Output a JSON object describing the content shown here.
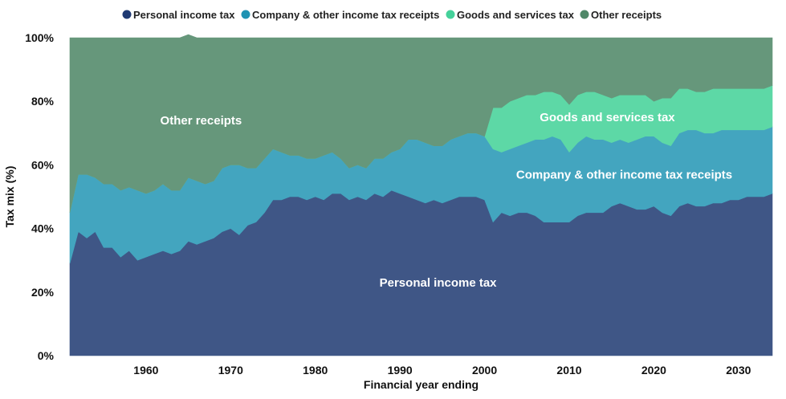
{
  "chart_data": {
    "type": "area",
    "stacked": true,
    "xlabel": "Financial year ending",
    "ylabel": "Tax mix (%)",
    "xlim": [
      1951,
      2034
    ],
    "ylim": [
      0,
      100
    ],
    "x_ticks": [
      1960,
      1970,
      1980,
      1990,
      2000,
      2010,
      2020,
      2030
    ],
    "y_ticks": [
      0,
      20,
      40,
      60,
      80,
      100
    ],
    "y_tick_labels": [
      "0%",
      "20%",
      "40%",
      "60%",
      "80%",
      "100%"
    ],
    "legend_position": "top-center",
    "x": [
      1951,
      1952,
      1953,
      1954,
      1955,
      1956,
      1957,
      1958,
      1959,
      1960,
      1961,
      1962,
      1963,
      1964,
      1965,
      1966,
      1967,
      1968,
      1969,
      1970,
      1971,
      1972,
      1973,
      1974,
      1975,
      1976,
      1977,
      1978,
      1979,
      1980,
      1981,
      1982,
      1983,
      1984,
      1985,
      1986,
      1987,
      1988,
      1989,
      1990,
      1991,
      1992,
      1993,
      1994,
      1995,
      1996,
      1997,
      1998,
      1999,
      2000,
      2001,
      2002,
      2003,
      2004,
      2005,
      2006,
      2007,
      2008,
      2009,
      2010,
      2011,
      2012,
      2013,
      2014,
      2015,
      2016,
      2017,
      2018,
      2019,
      2020,
      2021,
      2022,
      2023,
      2024,
      2025,
      2026,
      2027,
      2028,
      2029,
      2030,
      2031,
      2032,
      2033,
      2034
    ],
    "series": [
      {
        "name": "Personal income tax",
        "color": "#3f5686",
        "legend_color": "#1f3a73",
        "values": [
          29,
          39,
          37,
          39,
          34,
          34,
          31,
          33,
          30,
          31,
          32,
          33,
          32,
          33,
          36,
          35,
          36,
          37,
          39,
          40,
          38,
          41,
          42,
          45,
          49,
          49,
          50,
          50,
          49,
          50,
          49,
          51,
          51,
          49,
          50,
          49,
          51,
          50,
          52,
          51,
          50,
          49,
          48,
          49,
          48,
          49,
          50,
          50,
          50,
          49,
          42,
          45,
          44,
          45,
          45,
          44,
          42,
          42,
          42,
          42,
          44,
          45,
          45,
          45,
          47,
          48,
          47,
          46,
          46,
          47,
          45,
          44,
          47,
          48,
          47,
          47,
          48,
          48,
          49,
          49,
          50,
          50,
          50,
          51
        ]
      },
      {
        "name": "Company & other income tax receipts",
        "color": "#43a5bf",
        "legend_color": "#1f93b3",
        "values": [
          16,
          18,
          20,
          17,
          20,
          20,
          21,
          20,
          22,
          20,
          20,
          21,
          20,
          19,
          20,
          20,
          18,
          18,
          20,
          20,
          22,
          18,
          17,
          17,
          16,
          15,
          13,
          13,
          13,
          12,
          14,
          13,
          11,
          10,
          10,
          10,
          11,
          12,
          12,
          14,
          18,
          19,
          19,
          17,
          18,
          19,
          19,
          20,
          20,
          20,
          23,
          19,
          21,
          21,
          22,
          24,
          26,
          27,
          26,
          22,
          23,
          24,
          23,
          23,
          20,
          20,
          20,
          22,
          23,
          22,
          22,
          22,
          23,
          23,
          24,
          23,
          22,
          23,
          22,
          22,
          21,
          21,
          21,
          21
        ]
      },
      {
        "name": "Goods and services tax",
        "color": "#5dd8a6",
        "legend_color": "#45d19a",
        "values": [
          0,
          0,
          0,
          0,
          0,
          0,
          0,
          0,
          0,
          0,
          0,
          0,
          0,
          0,
          0,
          0,
          0,
          0,
          0,
          0,
          0,
          0,
          0,
          0,
          0,
          0,
          0,
          0,
          0,
          0,
          0,
          0,
          0,
          0,
          0,
          0,
          0,
          0,
          0,
          0,
          0,
          0,
          0,
          0,
          0,
          0,
          0,
          0,
          0,
          0,
          13,
          14,
          15,
          15,
          15,
          14,
          15,
          14,
          14,
          15,
          15,
          14,
          15,
          14,
          14,
          14,
          15,
          14,
          13,
          11,
          14,
          15,
          14,
          13,
          12,
          13,
          14,
          13,
          13,
          13,
          13,
          13,
          13,
          13
        ]
      },
      {
        "name": "Other receipts",
        "color": "#66977b",
        "legend_color": "#4f8868",
        "values": [
          55,
          43,
          43,
          44,
          46,
          46,
          48,
          47,
          48,
          49,
          48,
          46,
          48,
          48,
          45,
          45,
          46,
          45,
          41,
          40,
          40,
          41,
          41,
          38,
          35,
          36,
          37,
          37,
          38,
          38,
          37,
          36,
          38,
          41,
          40,
          41,
          38,
          38,
          36,
          35,
          32,
          32,
          33,
          34,
          34,
          32,
          31,
          30,
          30,
          31,
          22,
          22,
          20,
          19,
          18,
          18,
          17,
          17,
          18,
          21,
          18,
          17,
          17,
          18,
          19,
          18,
          18,
          18,
          18,
          20,
          19,
          19,
          16,
          16,
          17,
          17,
          16,
          16,
          16,
          16,
          16,
          16,
          16,
          15
        ]
      }
    ],
    "area_labels": [
      {
        "series": 0,
        "text": "Personal income tax",
        "x": 1994.5,
        "y": 23
      },
      {
        "series": 1,
        "text": "Company & other income tax receipts",
        "x": 2016.5,
        "y": 57
      },
      {
        "series": 2,
        "text": "Goods and services tax",
        "x": 2014.5,
        "y": 75
      },
      {
        "series": 3,
        "text": "Other receipts",
        "x": 1966.5,
        "y": 74
      }
    ]
  }
}
